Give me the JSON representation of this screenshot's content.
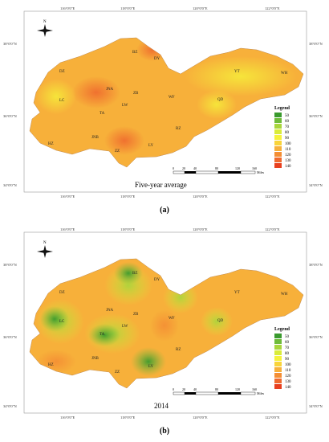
{
  "figure": {
    "lon_ticks": [
      "116°0'0\"E",
      "118°0'0\"E",
      "120°0'0\"E",
      "122°0'0\"E"
    ],
    "lat_ticks": [
      "38°0'0\"N",
      "36°0'0\"N",
      "34°0'0\"N"
    ],
    "north_label": "N",
    "scale_ticks": [
      "0",
      "20",
      "40",
      "80",
      "120",
      "160"
    ],
    "scale_unit": "Miles",
    "legend_title": "Legend",
    "legend_values": [
      "50",
      "60",
      "70",
      "80",
      "90",
      "100",
      "110",
      "120",
      "130",
      "140"
    ],
    "legend_colors": [
      "#3a9a2e",
      "#6fbc3a",
      "#a8d63c",
      "#d9ec3a",
      "#f5f23a",
      "#f9d43a",
      "#f7b03a",
      "#f48e34",
      "#ef6a2e",
      "#e8401f"
    ],
    "cities": [
      "BZ",
      "DY",
      "DZ",
      "LC",
      "JNA",
      "ZB",
      "LW",
      "TA",
      "WF",
      "YT",
      "WH",
      "QD",
      "RZ",
      "HZ",
      "JNB",
      "ZZ",
      "LY"
    ]
  },
  "panels": [
    {
      "title": "Five-year average",
      "caption": "(a)"
    },
    {
      "title": "2014",
      "caption": "(b)"
    }
  ]
}
